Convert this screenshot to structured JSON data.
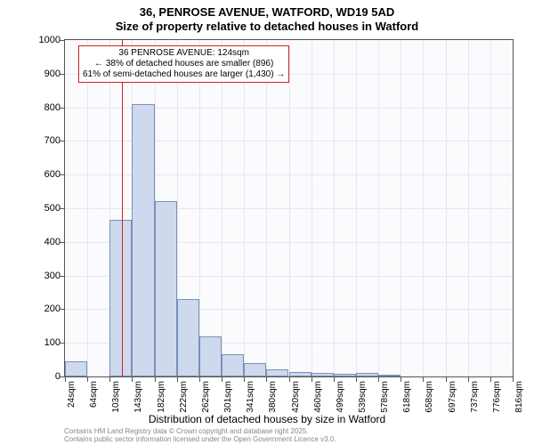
{
  "title": "36, PENROSE AVENUE, WATFORD, WD19 5AD",
  "subtitle": "Size of property relative to detached houses in Watford",
  "y_axis": {
    "title": "Number of detached properties",
    "min": 0,
    "max": 1000,
    "tick_step": 100,
    "ticks": [
      0,
      100,
      200,
      300,
      400,
      500,
      600,
      700,
      800,
      900,
      1000
    ]
  },
  "x_axis": {
    "title": "Distribution of detached houses by size in Watford",
    "labels": [
      "24sqm",
      "64sqm",
      "103sqm",
      "143sqm",
      "182sqm",
      "222sqm",
      "262sqm",
      "301sqm",
      "341sqm",
      "380sqm",
      "420sqm",
      "460sqm",
      "499sqm",
      "539sqm",
      "578sqm",
      "618sqm",
      "658sqm",
      "697sqm",
      "737sqm",
      "776sqm",
      "816sqm"
    ]
  },
  "bars": {
    "values": [
      45,
      0,
      465,
      810,
      520,
      230,
      120,
      65,
      40,
      20,
      12,
      10,
      8,
      10,
      2,
      0,
      0,
      0,
      0,
      0
    ],
    "fill_color": "#cfd9ed",
    "border_color": "#7a8fb8"
  },
  "marker": {
    "position_index": 2.55,
    "color": "#d02020"
  },
  "annotation": {
    "line1": "36 PENROSE AVENUE: 124sqm",
    "line2": "← 38% of detached houses are smaller (896)",
    "line3": "61% of semi-detached houses are larger (1,430) →",
    "border_color": "#d02020"
  },
  "plot": {
    "background_color": "#fbfbfd",
    "grid_color": "#e6e6ee",
    "border_color": "#555555"
  },
  "copyright": {
    "line1": "Contains HM Land Registry data © Crown copyright and database right 2025.",
    "line2": "Contains public sector information licensed under the Open Government Licence v3.0."
  }
}
